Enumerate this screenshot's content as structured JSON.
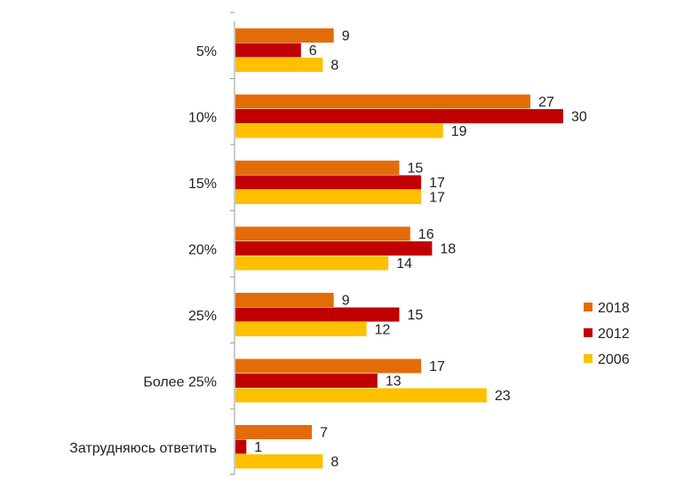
{
  "chart_data": {
    "type": "bar",
    "orientation": "horizontal",
    "title": "",
    "xlabel": "",
    "ylabel": "",
    "xlim": [
      0,
      30
    ],
    "grid": false,
    "legend_position": "right",
    "categories": [
      "5%",
      "10%",
      "15%",
      "20%",
      "25%",
      "Более 25%",
      "Затрудняюсь ответить"
    ],
    "series": [
      {
        "name": "2018",
        "color": "#E36C09",
        "values": [
          9,
          27,
          15,
          16,
          9,
          17,
          7
        ]
      },
      {
        "name": "2012",
        "color": "#C00000",
        "values": [
          6,
          30,
          17,
          18,
          15,
          13,
          1
        ]
      },
      {
        "name": "2006",
        "color": "#FFC000",
        "values": [
          8,
          19,
          17,
          14,
          12,
          23,
          8
        ]
      }
    ]
  }
}
